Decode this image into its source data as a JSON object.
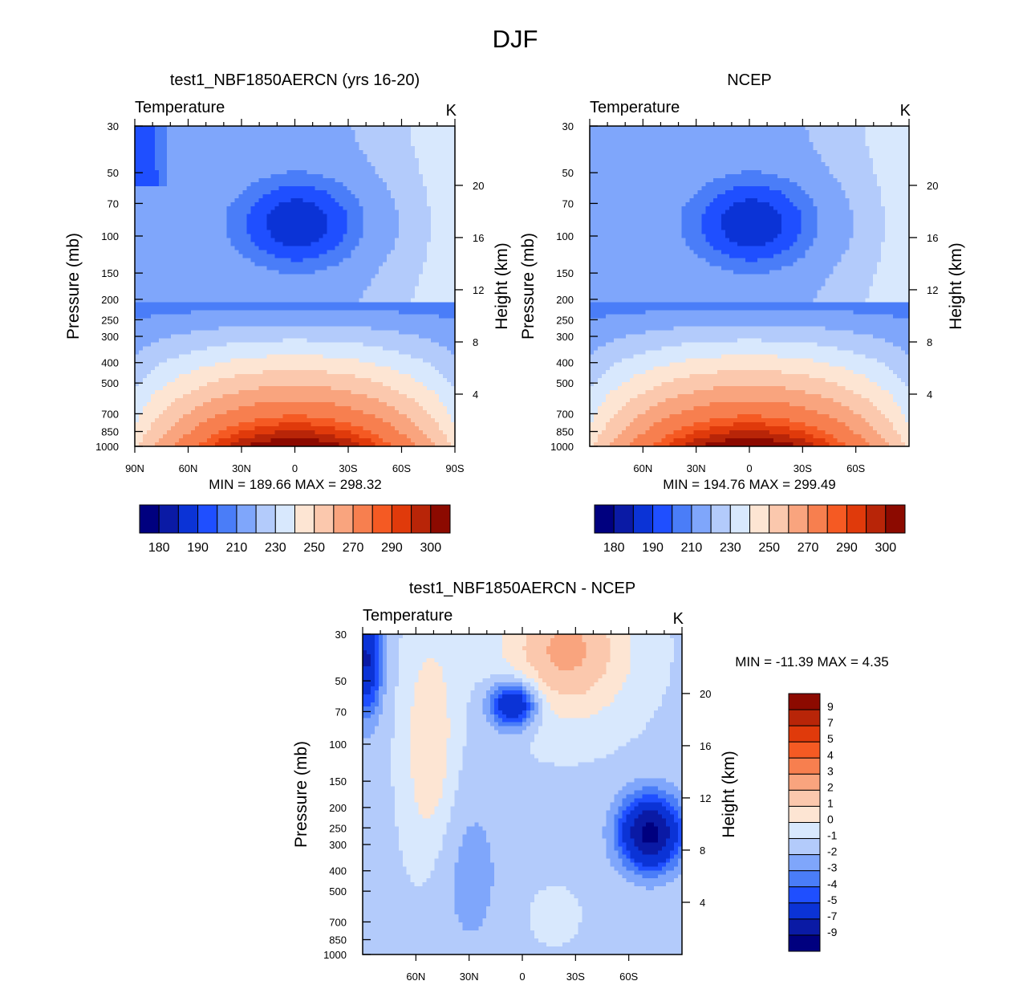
{
  "chart_data": {
    "type": "heatmap",
    "figure_title": "DJF",
    "panels": [
      {
        "id": "model",
        "title": "test1_NBF1850AERCN (yrs 16-20)",
        "left_string": "Temperature",
        "right_string": "K",
        "ylabel": "Pressure (mb)",
        "ylabel_right": "Height (km)",
        "pressure_ticks": [
          30,
          50,
          70,
          100,
          150,
          200,
          250,
          300,
          400,
          500,
          700,
          850,
          1000
        ],
        "height_ticks": [
          20,
          16,
          12,
          8,
          4
        ],
        "lat_ticks": [
          "90N",
          "60N",
          "30N",
          "0",
          "30S",
          "60S",
          "90S"
        ],
        "lat_values": [
          90,
          60,
          30,
          0,
          -30,
          -60,
          -90
        ],
        "xlim": [
          90,
          -90
        ],
        "ylim_pressure_mb": [
          30,
          1000
        ],
        "stats_text": "MIN = 189.66  MAX = 298.32",
        "min": 189.66,
        "max": 298.32,
        "colorbar": "abs",
        "regions": [
          {
            "level": 5,
            "desc": "polar stratosphere high lat N",
            "lat": [
              90,
              70
            ],
            "p": [
              30,
              60
            ]
          },
          {
            "level": 4,
            "desc": "tropical tropopause cold region",
            "lat": [
              35,
              -40
            ],
            "p": [
              45,
              175
            ]
          },
          {
            "level": 3,
            "desc": "tropopause core minimum",
            "lat": [
              25,
              -28
            ],
            "p": [
              60,
              130
            ]
          },
          {
            "level": 14,
            "desc": "tropical surface maximum",
            "lat": [
              10,
              -15
            ],
            "p": [
              900,
              1000
            ]
          }
        ]
      },
      {
        "id": "obs",
        "title": "NCEP",
        "left_string": "Temperature",
        "right_string": "K",
        "ylabel": "Pressure (mb)",
        "ylabel_right": "Height (km)",
        "pressure_ticks": [
          30,
          50,
          70,
          100,
          150,
          200,
          250,
          300,
          400,
          500,
          700,
          850,
          1000
        ],
        "height_ticks": [
          20,
          16,
          12,
          8,
          4
        ],
        "lat_ticks": [
          "60N",
          "30N",
          "0",
          "30S",
          "60S"
        ],
        "lat_values": [
          60,
          30,
          0,
          -30,
          -60
        ],
        "xlim": [
          90,
          -90
        ],
        "ylim_pressure_mb": [
          30,
          1000
        ],
        "stats_text": "MIN = 194.76  MAX = 299.49",
        "min": 194.76,
        "max": 299.49,
        "colorbar": "abs"
      },
      {
        "id": "diff",
        "title": "test1_NBF1850AERCN - NCEP",
        "left_string": "Temperature",
        "right_string": "K",
        "ylabel": "Pressure (mb)",
        "ylabel_right": "Height (km)",
        "pressure_ticks": [
          30,
          50,
          70,
          100,
          150,
          200,
          250,
          300,
          400,
          500,
          700,
          850,
          1000
        ],
        "height_ticks": [
          20,
          16,
          12,
          8,
          4
        ],
        "lat_ticks": [
          "60N",
          "30N",
          "0",
          "30S",
          "60S"
        ],
        "lat_values": [
          60,
          30,
          0,
          -30,
          -60
        ],
        "xlim": [
          90,
          -90
        ],
        "ylim_pressure_mb": [
          30,
          1000
        ],
        "stats_text": "MIN = -11.39  MAX =   4.35",
        "min": -11.39,
        "max": 4.35,
        "colorbar": "diff"
      }
    ],
    "colorbars": {
      "abs": {
        "orientation": "horizontal",
        "tick_labels": [
          "180",
          "190",
          "210",
          "230",
          "250",
          "270",
          "290",
          "300"
        ],
        "colors": [
          "#00007f",
          "#0a1aa5",
          "#0b33d6",
          "#1f4fff",
          "#4a7df8",
          "#7fa6fb",
          "#b3cbfb",
          "#d8e8fd",
          "#fde5d3",
          "#fbc8ad",
          "#f9a47e",
          "#f77f4f",
          "#f55a23",
          "#e03a0b",
          "#b82508",
          "#8c0a00"
        ]
      },
      "diff": {
        "orientation": "vertical",
        "tick_labels": [
          "9",
          "7",
          "5",
          "4",
          "3",
          "2",
          "1",
          "0",
          "-1",
          "-2",
          "-3",
          "-4",
          "-5",
          "-7",
          "-9"
        ],
        "colors": [
          "#8c0a00",
          "#b82508",
          "#e03a0b",
          "#f55a23",
          "#f77f4f",
          "#f9a47e",
          "#fbc8ad",
          "#fde5d3",
          "#d8e8fd",
          "#b3cbfb",
          "#7fa6fb",
          "#4a7df8",
          "#1f4fff",
          "#0b33d6",
          "#0a1aa5",
          "#00007f"
        ]
      }
    }
  }
}
